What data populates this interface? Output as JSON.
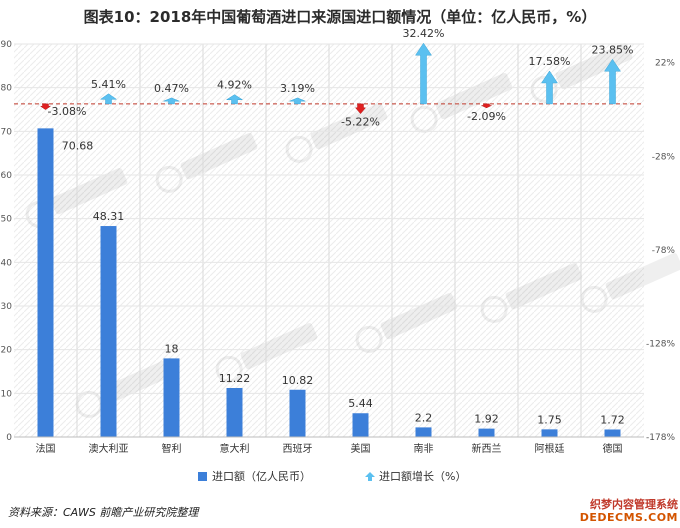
{
  "title": "图表10：2018年中国葡萄酒进口来源国进口额情况（单位：亿人民币，%）",
  "source": "资料来源：CAWS 前瞻产业研究院整理",
  "watermark": {
    "line1": "织梦内容管理系统",
    "line2": "DEDECMS.COM"
  },
  "colors": {
    "bar": "#3c7fd9",
    "arrow": "#5bc0f0",
    "arrow_down": "#e02020",
    "dashed_line": "#c0392b",
    "grid": "#d9d9d9"
  },
  "chart_data": {
    "type": "bar",
    "categories": [
      "法国",
      "澳大利亚",
      "智利",
      "意大利",
      "西班牙",
      "美国",
      "南非",
      "新西兰",
      "阿根廷",
      "德国"
    ],
    "series": [
      {
        "name": "进口额（亿人民币）",
        "type": "bar",
        "axis": "left",
        "values": [
          70.68,
          48.31,
          18,
          11.22,
          10.82,
          5.44,
          2.2,
          1.92,
          1.75,
          1.72
        ],
        "labels": [
          "70.68",
          "48.31",
          "18",
          "11.22",
          "10.82",
          "5.44",
          "2.2",
          "1.92",
          "1.75",
          "1.72"
        ]
      },
      {
        "name": "进口额增长（%）",
        "type": "arrow",
        "axis": "right",
        "values": [
          -3.08,
          5.41,
          0.47,
          4.92,
          3.19,
          -5.22,
          32.42,
          -2.09,
          17.58,
          23.85
        ],
        "labels": [
          "-3.08%",
          "5.41%",
          "0.47%",
          "4.92%",
          "3.19%",
          "-5.22%",
          "32.42%",
          "-2.09%",
          "17.58%",
          "23.85%"
        ]
      }
    ],
    "y_left": {
      "ylim": [
        0,
        90
      ],
      "ticks": [
        0,
        10,
        20,
        30,
        40,
        50,
        60,
        70,
        80,
        90
      ],
      "tick_labels": [
        "0",
        "10",
        "20",
        "30",
        "40",
        "50",
        "60",
        "70",
        "80",
        "90"
      ]
    },
    "y_right": {
      "ylim": [
        -178,
        32
      ],
      "ticks": [
        -178,
        -128,
        -78,
        -28,
        22
      ],
      "tick_labels": [
        "-178%",
        "-128%",
        "-78%",
        "-28%",
        "22%"
      ],
      "baseline": 0
    },
    "grid": true,
    "legend_position": "bottom"
  }
}
